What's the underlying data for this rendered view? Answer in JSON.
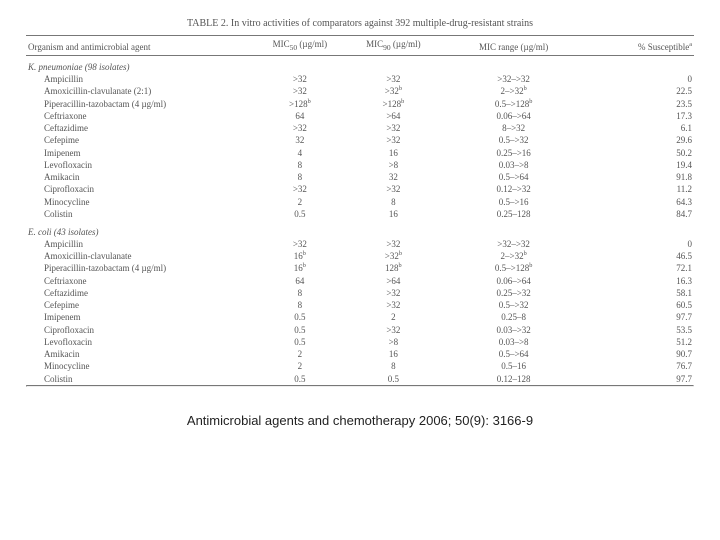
{
  "title": "TABLE 2. In vitro activities of comparators against 392 multiple-drug-resistant strains",
  "columns": {
    "c0": "Organism and antimicrobial agent",
    "c1_html": "MIC<sub>50</sub> (µg/ml)",
    "c2_html": "MIC<sub>90</sub> (µg/ml)",
    "c3": "MIC range (µg/ml)",
    "c4_html": "% Susceptible<sup>a</sup>"
  },
  "groups": [
    {
      "header": "K. pneumoniae (98 isolates)",
      "rows": [
        {
          "a": "Ampicillin",
          "m50": ">32",
          "m90": ">32",
          "range": ">32–>32",
          "sus": "0"
        },
        {
          "a": "Amoxicillin-clavulanate (2:1)",
          "m50": ">32",
          "m90": ">32",
          "range": "2–>32",
          "sus": "22.5",
          "sup": "b",
          "sup50": "",
          "sup90": "b",
          "supR": "b"
        },
        {
          "a": "Piperacillin-tazobactam (4 µg/ml)",
          "m50": ">128",
          "m90": ">128",
          "range": "0.5–>128",
          "sus": "23.5",
          "sup50": "b",
          "sup90": "b",
          "supR": "b"
        },
        {
          "a": "Ceftriaxone",
          "m50": "64",
          "m90": ">64",
          "range": "0.06–>64",
          "sus": "17.3"
        },
        {
          "a": "Ceftazidime",
          "m50": ">32",
          "m90": ">32",
          "range": "8–>32",
          "sus": "6.1"
        },
        {
          "a": "Cefepime",
          "m50": "32",
          "m90": ">32",
          "range": "0.5–>32",
          "sus": "29.6"
        },
        {
          "a": "Imipenem",
          "m50": "4",
          "m90": "16",
          "range": "0.25–>16",
          "sus": "50.2"
        },
        {
          "a": "Levofloxacin",
          "m50": "8",
          "m90": ">8",
          "range": "0.03–>8",
          "sus": "19.4"
        },
        {
          "a": "Amikacin",
          "m50": "8",
          "m90": "32",
          "range": "0.5–>64",
          "sus": "91.8"
        },
        {
          "a": "Ciprofloxacin",
          "m50": ">32",
          "m90": ">32",
          "range": "0.12–>32",
          "sus": "11.2"
        },
        {
          "a": "Minocycline",
          "m50": "2",
          "m90": "8",
          "range": "0.5–>16",
          "sus": "64.3"
        },
        {
          "a": "Colistin",
          "m50": "0.5",
          "m90": "16",
          "range": "0.25–128",
          "sus": "84.7"
        }
      ]
    },
    {
      "header": "E. coli (43 isolates)",
      "rows": [
        {
          "a": "Ampicillin",
          "m50": ">32",
          "m90": ">32",
          "range": ">32–>32",
          "sus": "0"
        },
        {
          "a": "Amoxicillin-clavulanate",
          "m50": "16",
          "m90": ">32",
          "range": "2–>32",
          "sus": "46.5",
          "sup50": "b",
          "sup90": "b",
          "supR": "b"
        },
        {
          "a": "Piperacillin-tazobactam (4 µg/ml)",
          "m50": "16",
          "m90": "128",
          "range": "0.5–>128",
          "sus": "72.1",
          "sup50": "b",
          "sup90": "b",
          "supR": "b"
        },
        {
          "a": "Ceftriaxone",
          "m50": "64",
          "m90": ">64",
          "range": "0.06–>64",
          "sus": "16.3"
        },
        {
          "a": "Ceftazidime",
          "m50": "8",
          "m90": ">32",
          "range": "0.25–>32",
          "sus": "58.1"
        },
        {
          "a": "Cefepime",
          "m50": "8",
          "m90": ">32",
          "range": "0.5–>32",
          "sus": "60.5"
        },
        {
          "a": "Imipenem",
          "m50": "0.5",
          "m90": "2",
          "range": "0.25–8",
          "sus": "97.7"
        },
        {
          "a": "Ciprofloxacin",
          "m50": "0.5",
          "m90": ">32",
          "range": "0.03–>32",
          "sus": "53.5"
        },
        {
          "a": "Levofloxacin",
          "m50": "0.5",
          "m90": ">8",
          "range": "0.03–>8",
          "sus": "51.2"
        },
        {
          "a": "Amikacin",
          "m50": "2",
          "m90": "16",
          "range": "0.5–>64",
          "sus": "90.7"
        },
        {
          "a": "Minocycline",
          "m50": "2",
          "m90": "8",
          "range": "0.5–16",
          "sus": "76.7"
        },
        {
          "a": "Colistin",
          "m50": "0.5",
          "m90": "0.5",
          "range": "0.12–128",
          "sus": "97.7"
        }
      ]
    }
  ],
  "citation": "Antimicrobial agents and chemotherapy 2006; 50(9): 3166-9",
  "col_widths": [
    "34%",
    "14%",
    "14%",
    "22%",
    "16%"
  ]
}
